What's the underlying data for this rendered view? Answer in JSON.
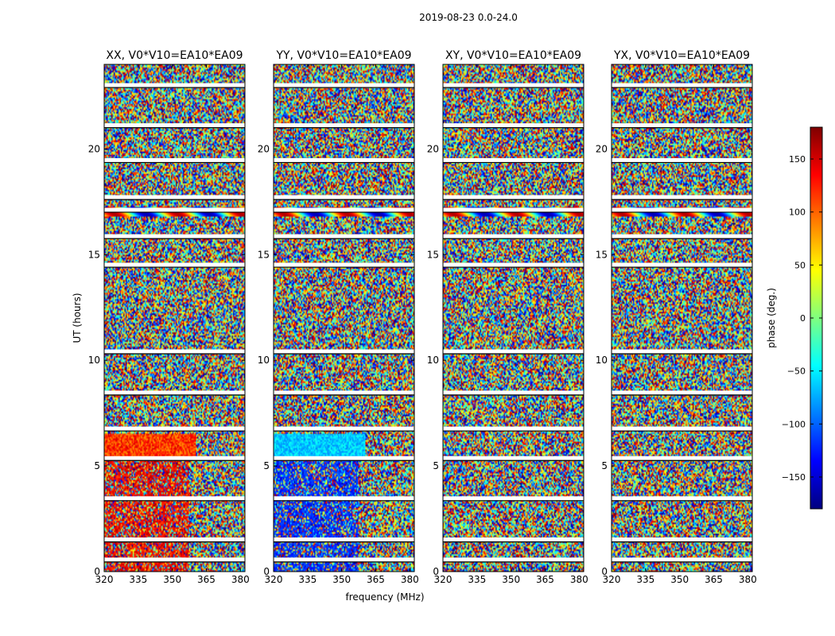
{
  "figure": {
    "suptitle": "2019-08-23 0.0-24.0"
  },
  "chart_data": {
    "type": "heatmap",
    "title": "2019-08-23 0.0-24.0",
    "xlabel": "frequency (MHz)",
    "ylabel": "UT (hours)",
    "xlim": [
      320,
      382
    ],
    "ylim": [
      0,
      24
    ],
    "xticks": [
      320,
      335,
      350,
      365,
      380
    ],
    "yticks": [
      0,
      5,
      10,
      15,
      20
    ],
    "panels": [
      {
        "title": "XX, V0*V10=EA10*EA09",
        "pol": "XX"
      },
      {
        "title": "YY, V0*V10=EA10*EA09",
        "pol": "YY"
      },
      {
        "title": "XY, V0*V10=EA10*EA09",
        "pol": "XY"
      },
      {
        "title": "YX, V0*V10=EA10*EA09",
        "pol": "YX"
      }
    ],
    "colorbar": {
      "label": "phase (deg.)",
      "range": [
        -180,
        180
      ],
      "ticks": [
        150,
        100,
        50,
        0,
        -50,
        -100,
        -150
      ],
      "tick_labels": [
        "150",
        "100",
        "50",
        "0",
        "−50",
        "−100",
        "−150"
      ],
      "colormap": "jet",
      "colors": [
        "#00007f",
        "#0000ff",
        "#007fff",
        "#00ffff",
        "#7fff7f",
        "#ffff00",
        "#ff7f00",
        "#ff0000",
        "#7f0000"
      ]
    },
    "gaps_hours": [
      0.55,
      1.5,
      3.45,
      5.35,
      6.75,
      8.45,
      10.4,
      14.5,
      15.85,
      17.1,
      17.7,
      19.45,
      21.1,
      23.0
    ]
  }
}
